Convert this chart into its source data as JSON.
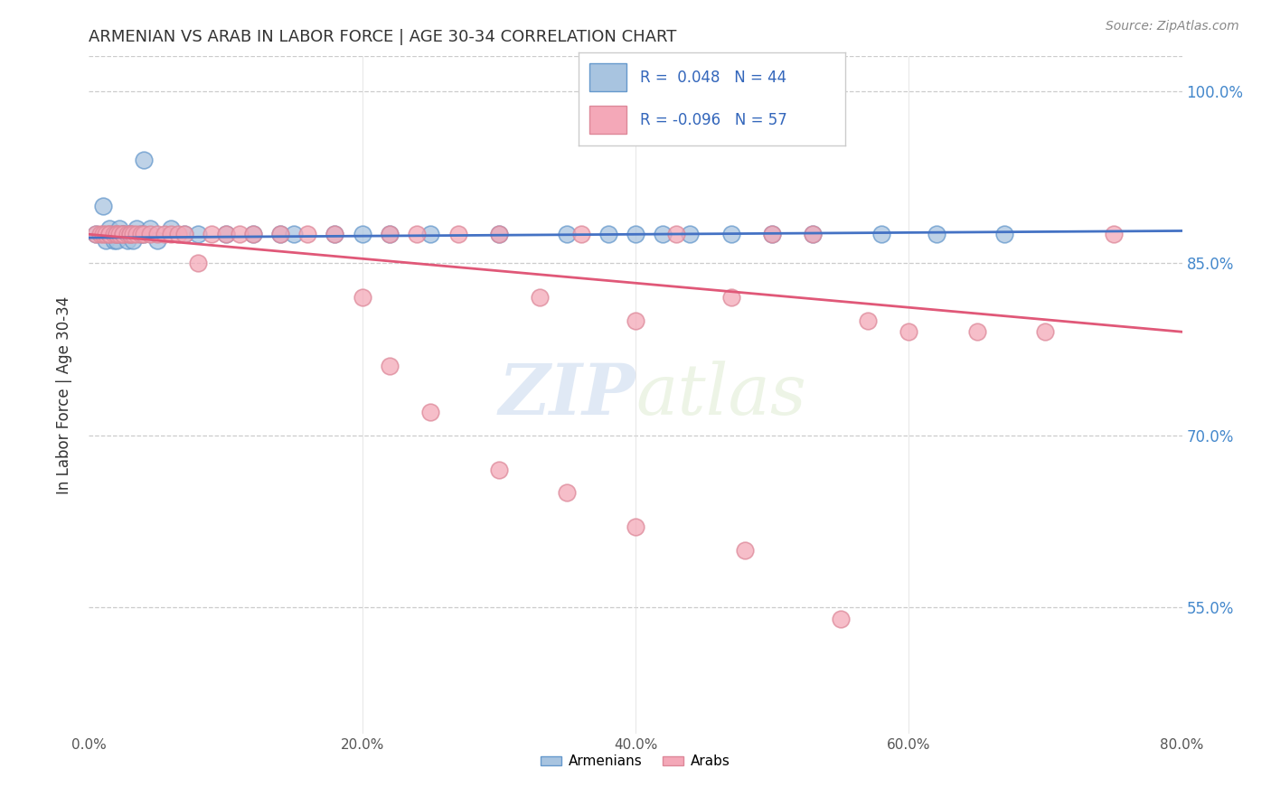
{
  "title": "ARMENIAN VS ARAB IN LABOR FORCE | AGE 30-34 CORRELATION CHART",
  "source_text": "Source: ZipAtlas.com",
  "ylabel": "In Labor Force | Age 30-34",
  "xmin": 0.0,
  "xmax": 0.8,
  "ymin": 0.44,
  "ymax": 1.03,
  "ytick_labels_right": [
    "100.0%",
    "85.0%",
    "70.0%",
    "55.0%"
  ],
  "ytick_values": [
    1.0,
    0.85,
    0.7,
    0.55
  ],
  "xtick_labels": [
    "0.0%",
    "20.0%",
    "40.0%",
    "60.0%",
    "80.0%"
  ],
  "xtick_values": [
    0.0,
    0.2,
    0.4,
    0.6,
    0.8
  ],
  "armenian_R": 0.048,
  "armenian_N": 44,
  "arab_R": -0.096,
  "arab_N": 57,
  "armenian_color": "#a8c4e0",
  "arab_color": "#f4a8b8",
  "armenian_line_color": "#4472c4",
  "arab_line_color": "#e05878",
  "legend_armenians": "Armenians",
  "legend_arabs": "Arabs",
  "watermark_zip": "ZIP",
  "watermark_atlas": "atlas",
  "armenian_x": [
    0.005,
    0.01,
    0.012,
    0.015,
    0.015,
    0.018,
    0.02,
    0.02,
    0.022,
    0.025,
    0.025,
    0.028,
    0.03,
    0.03,
    0.032,
    0.035,
    0.038,
    0.04,
    0.04,
    0.045,
    0.05,
    0.06,
    0.07,
    0.08,
    0.1,
    0.12,
    0.14,
    0.15,
    0.18,
    0.2,
    0.22,
    0.25,
    0.3,
    0.35,
    0.38,
    0.4,
    0.42,
    0.44,
    0.47,
    0.5,
    0.53,
    0.58,
    0.62,
    0.67
  ],
  "armenian_y": [
    0.875,
    0.9,
    0.87,
    0.875,
    0.88,
    0.87,
    0.87,
    0.875,
    0.88,
    0.875,
    0.875,
    0.87,
    0.875,
    0.875,
    0.87,
    0.88,
    0.875,
    0.94,
    0.875,
    0.88,
    0.87,
    0.88,
    0.875,
    0.875,
    0.875,
    0.875,
    0.875,
    0.875,
    0.875,
    0.875,
    0.875,
    0.875,
    0.875,
    0.875,
    0.875,
    0.875,
    0.875,
    0.875,
    0.875,
    0.875,
    0.875,
    0.875,
    0.875,
    0.875
  ],
  "arab_x": [
    0.005,
    0.008,
    0.01,
    0.012,
    0.015,
    0.015,
    0.018,
    0.02,
    0.02,
    0.022,
    0.025,
    0.025,
    0.028,
    0.03,
    0.03,
    0.032,
    0.035,
    0.038,
    0.04,
    0.045,
    0.05,
    0.055,
    0.06,
    0.065,
    0.07,
    0.08,
    0.09,
    0.1,
    0.11,
    0.12,
    0.14,
    0.16,
    0.18,
    0.2,
    0.22,
    0.24,
    0.27,
    0.3,
    0.33,
    0.36,
    0.4,
    0.43,
    0.47,
    0.5,
    0.53,
    0.57,
    0.6,
    0.65,
    0.7,
    0.75,
    0.22,
    0.25,
    0.3,
    0.35,
    0.4,
    0.48,
    0.55
  ],
  "arab_y": [
    0.875,
    0.875,
    0.875,
    0.875,
    0.875,
    0.875,
    0.875,
    0.875,
    0.875,
    0.875,
    0.875,
    0.875,
    0.875,
    0.875,
    0.875,
    0.875,
    0.875,
    0.875,
    0.875,
    0.875,
    0.875,
    0.875,
    0.875,
    0.875,
    0.875,
    0.85,
    0.875,
    0.875,
    0.875,
    0.875,
    0.875,
    0.875,
    0.875,
    0.82,
    0.875,
    0.875,
    0.875,
    0.875,
    0.82,
    0.875,
    0.8,
    0.875,
    0.82,
    0.875,
    0.875,
    0.8,
    0.79,
    0.79,
    0.79,
    0.875,
    0.76,
    0.72,
    0.67,
    0.65,
    0.62,
    0.6,
    0.54
  ],
  "arm_line_x0": 0.0,
  "arm_line_x1": 0.8,
  "arm_line_y0": 0.872,
  "arm_line_y1": 0.878,
  "arab_line_x0": 0.0,
  "arab_line_x1": 0.8,
  "arab_line_y0": 0.875,
  "arab_line_y1": 0.79
}
